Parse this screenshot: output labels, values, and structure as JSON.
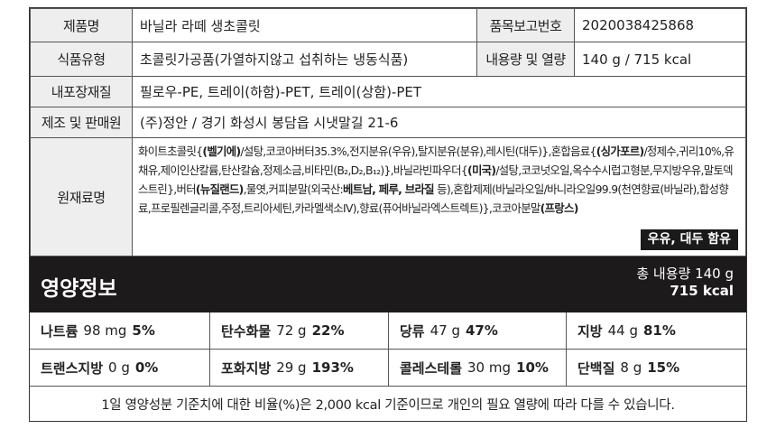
{
  "product_table": {
    "rows": [
      [
        "제품명",
        "바닐라 라떼 생초콜릿",
        "품목보고번호",
        "2020038425868"
      ],
      [
        "식품유형",
        "초콜릿가공품(가열하지않고 섭취하는 냉동식품)",
        "내용량 및 열량",
        "140 g / 715 kcal"
      ],
      [
        "내포장재질",
        "필로우-PE, 트레이(하함)-PET, 트레이(상함)-PET"
      ],
      [
        "제조 및 판매원",
        "(주)정안 / 경기 화성시 봉담읍 시냇말길 21-6"
      ]
    ]
  },
  "ingredients": {
    "label": "원재료명",
    "runs": [
      "화이트초콜릿{",
      "(벨기에)",
      "/설탕,코코아버터35.3%,전지분유(우유),탈지분유(분유),레시틴(대두)},혼합음료{",
      "(싱가포르)",
      "/정제수,귀리10%,유채유,제이인산칼륨,탄산칼슘,정제소금,비타민(B₂,D₂,B₁₂)},바닐라빈파우더{",
      "(미국)",
      "/설탕,코코넛오일,옥수수시럽고형분,무지방우유,말토덱스트린},버터",
      "(뉴질랜드)",
      ",물엿,커피분말(외국산:",
      "베트남, 페루, 브라질",
      " 등),혼합제제(바닐라오일/바니라오일99.9(천연향료(바닐라),합성향료,프로필렌글리콜,주정,트리아세틴,카라멜색소Ⅳ),향료(퓨어바닐라엑스트렉트)},코코아분말",
      "(프랑스)"
    ],
    "allergy": "우유, 대두 함유"
  },
  "nutrition": {
    "title": "영양정보",
    "total": "총 내용량 140 g",
    "calories": "715 kcal",
    "items": [
      {
        "name": "나트륨",
        "amount": "98 mg",
        "percent": "5%"
      },
      {
        "name": "탄수화물",
        "amount": "72 g",
        "percent": "22%"
      },
      {
        "name": "당류",
        "amount": "47 g",
        "percent": "47%"
      },
      {
        "name": "지방",
        "amount": "44 g",
        "percent": "81%"
      },
      {
        "name": "트랜스지방",
        "amount": "0 g",
        "percent": "0%"
      },
      {
        "name": "포화지방",
        "amount": "29 g",
        "percent": "193%"
      },
      {
        "name": "콜레스테롤",
        "amount": "30 mg",
        "percent": "10%"
      },
      {
        "name": "단백질",
        "amount": "8 g",
        "percent": "15%"
      }
    ],
    "footnote": "1일 영양성분 기준치에 대한 비율(%)은 2,000 kcal 기준이므로 개인의 필요 열량에 따라 다를 수 있습니다."
  }
}
